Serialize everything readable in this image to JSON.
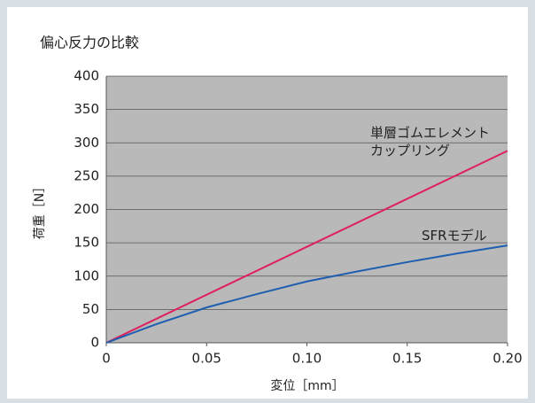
{
  "chart_data": {
    "type": "line",
    "title": "偏心反力の比較",
    "xlabel": "変位［mm］",
    "ylabel": "荷重［N］",
    "series": [
      {
        "name": "単層ゴムエレメント\nカップリング",
        "color": "#e0205c",
        "x": [
          0,
          0.2
        ],
        "values": [
          0,
          288
        ]
      },
      {
        "name": "SFRモデル",
        "color": "#1f5fb0",
        "x": [
          0,
          0.025,
          0.05,
          0.075,
          0.1,
          0.125,
          0.15,
          0.175,
          0.2
        ],
        "values": [
          0,
          28,
          53,
          73,
          92,
          107,
          121,
          134,
          146
        ]
      }
    ],
    "xlim": [
      0,
      0.2
    ],
    "xticks": [
      0,
      0.05,
      {
        "value": 0.1,
        "label": "0.10"
      },
      0.15,
      {
        "value": 0.2,
        "label": "0.20"
      }
    ],
    "ylim": [
      0,
      400
    ],
    "yticks": [
      0,
      50,
      100,
      150,
      200,
      250,
      300,
      350,
      400
    ],
    "grid": true
  }
}
